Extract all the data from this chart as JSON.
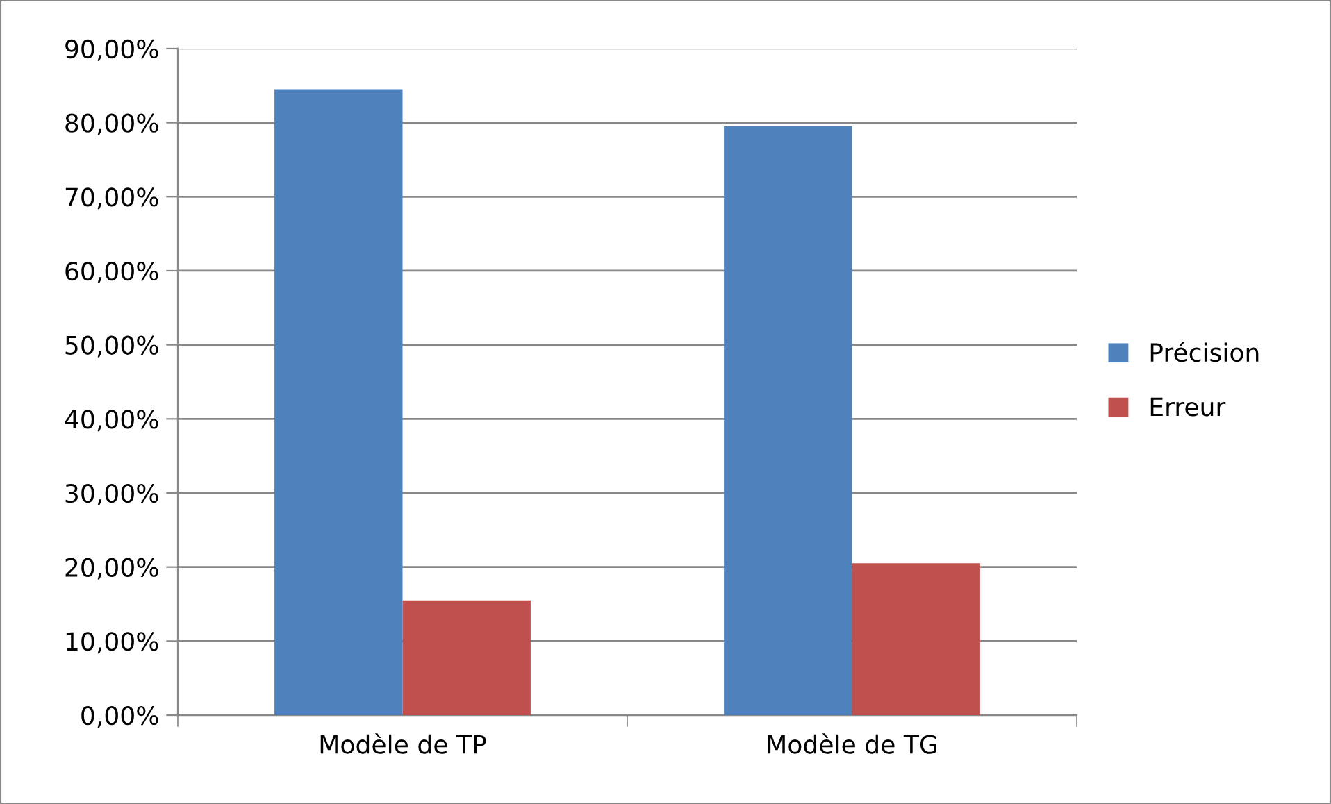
{
  "chart_data": {
    "type": "bar",
    "categories": [
      "Modèle de TP",
      "Modèle de TG"
    ],
    "series": [
      {
        "name": "Précision",
        "color": "#4f81bd",
        "values": [
          84.5,
          79.5
        ]
      },
      {
        "name": "Erreur",
        "color": "#c0504d",
        "values": [
          15.5,
          20.5
        ]
      }
    ],
    "ylim": [
      0,
      90
    ],
    "yticks": [
      {
        "value": 0,
        "label": "0,00%"
      },
      {
        "value": 10,
        "label": "10,00%"
      },
      {
        "value": 20,
        "label": "20,00%"
      },
      {
        "value": 30,
        "label": "30,00%"
      },
      {
        "value": 40,
        "label": "40,00%"
      },
      {
        "value": 50,
        "label": "50,00%"
      },
      {
        "value": 60,
        "label": "60,00%"
      },
      {
        "value": 70,
        "label": "70,00%"
      },
      {
        "value": 80,
        "label": "80,00%"
      },
      {
        "value": 90,
        "label": "90,00%"
      }
    ],
    "grid": "y",
    "legend": "right"
  }
}
